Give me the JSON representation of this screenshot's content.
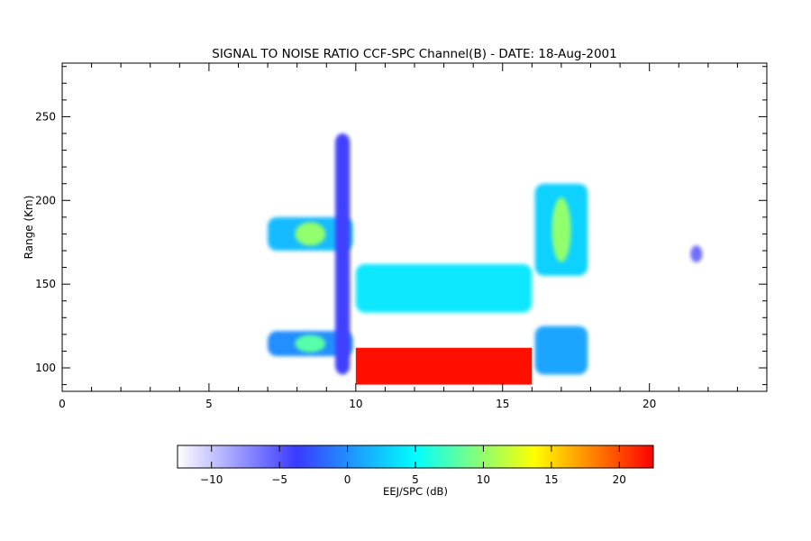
{
  "chart_data": {
    "type": "heatmap",
    "title": "SIGNAL TO NOISE RATIO CCF-SPC Channel(B) - DATE: 18-Aug-2001",
    "xlabel": "",
    "ylabel": "Range (Km)",
    "xlim": [
      0,
      24
    ],
    "ylim": [
      86,
      282
    ],
    "x_ticks": [
      0,
      5,
      10,
      15,
      20
    ],
    "y_ticks": [
      100,
      150,
      200,
      250
    ],
    "grid": false,
    "colorbar": {
      "label": "EEJ/SPC (dB)",
      "range": [
        -12.5,
        22.5
      ],
      "ticks": [
        -10,
        -5,
        0,
        5,
        10,
        15,
        20
      ],
      "colors": [
        "#ffffff",
        "#3a3aff",
        "#00ffff",
        "#ffff00",
        "#ff0000"
      ]
    },
    "regions": [
      {
        "name": "upper echo band",
        "x": [
          7.0,
          9.9
        ],
        "y": [
          170,
          190
        ],
        "snr_db": 2,
        "peak_snr_db": 10
      },
      {
        "name": "lower echo band",
        "x": [
          7.0,
          9.9
        ],
        "y": [
          107,
          122
        ],
        "snr_db": 0,
        "peak_snr_db": 8
      },
      {
        "name": "vertical column",
        "x": [
          9.3,
          9.8
        ],
        "y": [
          96,
          240
        ],
        "snr_db": -4
      },
      {
        "name": "midday scatter band",
        "x": [
          10.0,
          16.0
        ],
        "y": [
          133,
          162
        ],
        "snr_db": 4
      },
      {
        "name": "saturated EEJ",
        "x": [
          10.0,
          16.0
        ],
        "y": [
          90,
          112
        ],
        "snr_db": 22
      },
      {
        "name": "afternoon upper band",
        "x": [
          16.1,
          17.9
        ],
        "y": [
          155,
          210
        ],
        "snr_db": 3,
        "peak_snr_db": 10
      },
      {
        "name": "afternoon lower band",
        "x": [
          16.1,
          17.9
        ],
        "y": [
          96,
          125
        ],
        "snr_db": 1
      },
      {
        "name": "isolated echo",
        "x": [
          21.4,
          21.8
        ],
        "y": [
          163,
          173
        ],
        "snr_db": -6
      }
    ]
  }
}
